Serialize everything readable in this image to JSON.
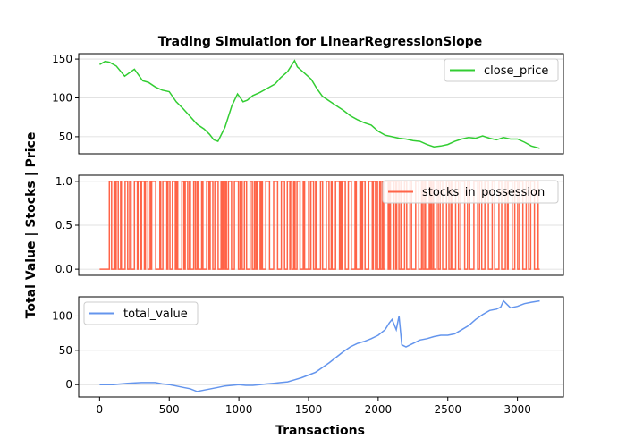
{
  "chart_data": {
    "title": "Trading Simulation for LinearRegressionSlope",
    "xlabel": "Transactions",
    "ylabel": "Total Value | Stocks | Price",
    "type": "line",
    "xlim": [
      -150,
      3330
    ],
    "xticks": [
      0,
      500,
      1000,
      1500,
      2000,
      2500,
      3000
    ],
    "grid": "horizontal",
    "panels": [
      {
        "series_name": "close_price",
        "color": "#32cd32",
        "legend": "top-right",
        "ylim": [
          28,
          157
        ],
        "yticks": [
          50,
          100,
          150
        ],
        "x": [
          0,
          40,
          70,
          120,
          180,
          250,
          310,
          350,
          400,
          450,
          500,
          550,
          600,
          650,
          700,
          750,
          790,
          820,
          850,
          900,
          950,
          990,
          1030,
          1060,
          1100,
          1150,
          1200,
          1260,
          1300,
          1350,
          1400,
          1420,
          1470,
          1520,
          1560,
          1600,
          1650,
          1700,
          1750,
          1800,
          1850,
          1900,
          1950,
          2000,
          2050,
          2100,
          2150,
          2200,
          2250,
          2300,
          2350,
          2400,
          2450,
          2500,
          2550,
          2600,
          2650,
          2700,
          2750,
          2800,
          2850,
          2900,
          2950,
          3000,
          3050,
          3100,
          3160
        ],
        "y": [
          143,
          147,
          146,
          141,
          128,
          137,
          122,
          120,
          114,
          110,
          108,
          95,
          86,
          76,
          66,
          60,
          53,
          46,
          44,
          62,
          90,
          105,
          95,
          97,
          103,
          107,
          112,
          118,
          126,
          134,
          148,
          140,
          132,
          124,
          112,
          102,
          96,
          90,
          84,
          77,
          72,
          68,
          65,
          57,
          52,
          50,
          48,
          47,
          45,
          44,
          40,
          37,
          38,
          40,
          44,
          47,
          49,
          48,
          51,
          48,
          46,
          49,
          47,
          47,
          43,
          38,
          35
        ]
      },
      {
        "series_name": "stocks_in_possession",
        "color": "#ff6347",
        "legend": "top-right",
        "ylim": [
          -0.07,
          1.07
        ],
        "yticks": [
          "0.0",
          "0.5",
          "1.0"
        ],
        "x_range": [
          0,
          3160
        ],
        "values": [
          0,
          1
        ],
        "first_switch": 70
      },
      {
        "series_name": "total_value",
        "color": "#6495ed",
        "legend": "top-left",
        "ylim": [
          -18,
          128
        ],
        "yticks": [
          0,
          50,
          100
        ],
        "x": [
          0,
          100,
          200,
          300,
          400,
          450,
          500,
          550,
          600,
          650,
          700,
          750,
          800,
          850,
          900,
          950,
          1000,
          1050,
          1100,
          1150,
          1200,
          1250,
          1300,
          1350,
          1400,
          1450,
          1500,
          1550,
          1600,
          1650,
          1700,
          1750,
          1800,
          1850,
          1900,
          1950,
          2000,
          2050,
          2080,
          2100,
          2130,
          2150,
          2170,
          2200,
          2250,
          2300,
          2350,
          2400,
          2450,
          2500,
          2550,
          2600,
          2650,
          2700,
          2750,
          2800,
          2850,
          2880,
          2900,
          2950,
          3000,
          3050,
          3100,
          3160
        ],
        "y": [
          0,
          0,
          2,
          3,
          3,
          1,
          0,
          -2,
          -4,
          -6,
          -10,
          -8,
          -6,
          -4,
          -2,
          -1,
          0,
          -1,
          -1,
          0,
          1,
          2,
          3,
          4,
          7,
          10,
          14,
          18,
          25,
          32,
          40,
          48,
          55,
          60,
          63,
          67,
          72,
          80,
          90,
          95,
          80,
          100,
          58,
          55,
          60,
          65,
          67,
          70,
          72,
          72,
          74,
          80,
          86,
          95,
          102,
          108,
          110,
          113,
          122,
          112,
          114,
          118,
          120,
          122
        ]
      }
    ]
  }
}
